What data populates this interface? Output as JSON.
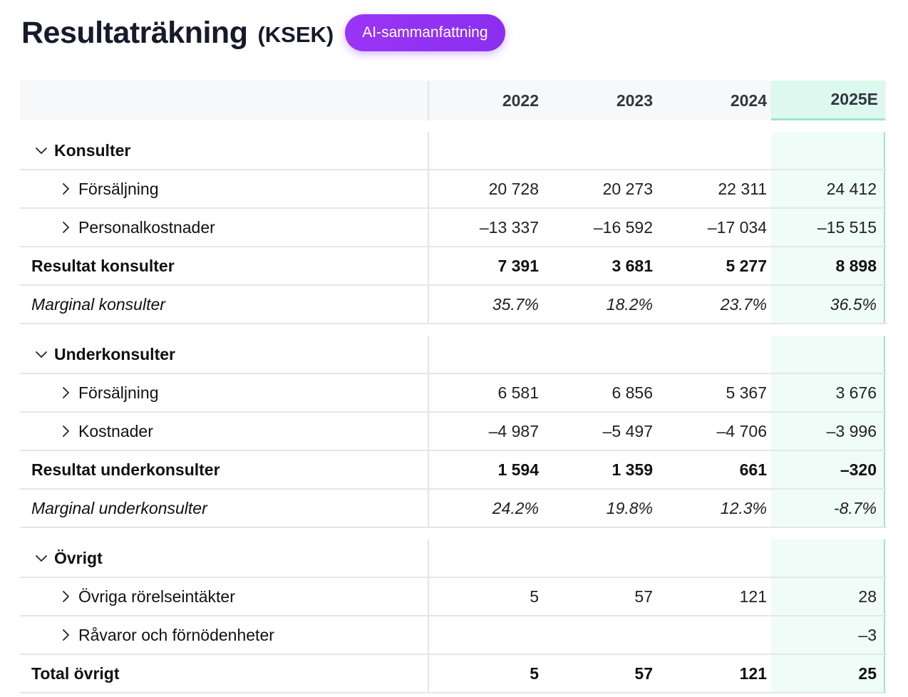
{
  "header": {
    "title": "Resultaträkning",
    "unit": "(KSEK)",
    "ai_button": "AI-sammanfattning"
  },
  "table": {
    "columns": [
      "2022",
      "2023",
      "2024",
      "2025E"
    ],
    "groups": [
      {
        "name": "Konsulter",
        "rows": [
          {
            "label": "Försäljning",
            "values": [
              "20 728",
              "20 273",
              "22 311",
              "24 412"
            ]
          },
          {
            "label": "Personalkostnader",
            "values": [
              "–13 337",
              "–16 592",
              "–17 034",
              "–15 515"
            ]
          }
        ],
        "total": {
          "label": "Resultat konsulter",
          "values": [
            "7 391",
            "3 681",
            "5 277",
            "8 898"
          ]
        },
        "margin": {
          "label": "Marginal konsulter",
          "values": [
            "35.7%",
            "18.2%",
            "23.7%",
            "36.5%"
          ]
        }
      },
      {
        "name": "Underkonsulter",
        "rows": [
          {
            "label": "Försäljning",
            "values": [
              "6 581",
              "6 856",
              "5 367",
              "3 676"
            ]
          },
          {
            "label": "Kostnader",
            "values": [
              "–4 987",
              "–5 497",
              "–4 706",
              "–3 996"
            ]
          }
        ],
        "total": {
          "label": "Resultat underkonsulter",
          "values": [
            "1 594",
            "1 359",
            "661",
            "–320"
          ]
        },
        "margin": {
          "label": "Marginal underkonsulter",
          "values": [
            "24.2%",
            "19.8%",
            "12.3%",
            "-8.7%"
          ]
        }
      },
      {
        "name": "Övrigt",
        "rows": [
          {
            "label": "Övriga rörelseintäkter",
            "values": [
              "5",
              "57",
              "121",
              "28"
            ]
          },
          {
            "label": "Råvaror och förnödenheter",
            "values": [
              "",
              "",
              "",
              "–3"
            ]
          }
        ],
        "total": {
          "label": "Total övrigt",
          "values": [
            "5",
            "57",
            "121",
            "25"
          ]
        }
      }
    ]
  },
  "colors": {
    "accent_purple": "#9b35f5",
    "estimate_column_bg": "#effcf7",
    "estimate_column_border": "#9fe4cf"
  },
  "icons": {
    "expanded": "chevron-down-icon",
    "collapsed": "chevron-right-icon"
  }
}
